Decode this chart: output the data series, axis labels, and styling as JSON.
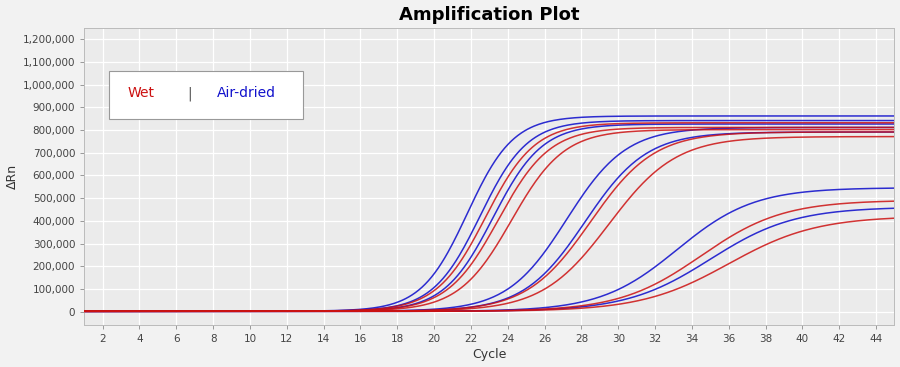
{
  "title": "Amplification Plot",
  "xlabel": "Cycle",
  "ylabel": "ΔRn",
  "xlim": [
    1,
    45
  ],
  "ylim": [
    -60000,
    1250000
  ],
  "xticks": [
    2,
    4,
    6,
    8,
    10,
    12,
    14,
    16,
    18,
    20,
    22,
    24,
    26,
    28,
    30,
    32,
    34,
    36,
    38,
    40,
    42,
    44
  ],
  "yticks": [
    0,
    100000,
    200000,
    300000,
    400000,
    500000,
    600000,
    700000,
    800000,
    900000,
    1000000,
    1100000,
    1200000
  ],
  "ytick_labels": [
    "0",
    "100,000",
    "200,000",
    "300,000",
    "400,000",
    "500,000",
    "600,000",
    "700,000",
    "800,000",
    "900,000",
    "1,000,000",
    "1,100,000",
    "1,200,000"
  ],
  "fig_bg": "#f2f2f2",
  "plot_bg": "#ebebeb",
  "grid_color": "#ffffff",
  "title_fontsize": 13,
  "axis_label_fontsize": 9,
  "tick_fontsize": 7.5,
  "wet_color": "#cc1111",
  "air_color": "#1111cc",
  "wet_curves": [
    {
      "midpoint": 22.8,
      "L": 830000,
      "k": 0.75,
      "baseline": 2000,
      "noise": 3000
    },
    {
      "midpoint": 23.5,
      "L": 810000,
      "k": 0.72,
      "baseline": 1500,
      "noise": 2500
    },
    {
      "midpoint": 24.2,
      "L": 800000,
      "k": 0.7,
      "baseline": 1800,
      "noise": 2800
    },
    {
      "midpoint": 28.5,
      "L": 790000,
      "k": 0.58,
      "baseline": 1500,
      "noise": 2000
    },
    {
      "midpoint": 29.5,
      "L": 770000,
      "k": 0.55,
      "baseline": 1200,
      "noise": 1800
    },
    {
      "midpoint": 34.5,
      "L": 490000,
      "k": 0.45,
      "baseline": 1000,
      "noise": 1500
    },
    {
      "midpoint": 36.0,
      "L": 420000,
      "k": 0.42,
      "baseline": 1000,
      "noise": 1500
    }
  ],
  "air_curves": [
    {
      "midpoint": 21.8,
      "L": 860000,
      "k": 0.8,
      "baseline": 2000,
      "noise": 3200
    },
    {
      "midpoint": 22.5,
      "L": 840000,
      "k": 0.78,
      "baseline": 1800,
      "noise": 2800
    },
    {
      "midpoint": 23.2,
      "L": 825000,
      "k": 0.75,
      "baseline": 1500,
      "noise": 2500
    },
    {
      "midpoint": 27.2,
      "L": 810000,
      "k": 0.62,
      "baseline": 1500,
      "noise": 2200
    },
    {
      "midpoint": 28.2,
      "L": 790000,
      "k": 0.6,
      "baseline": 1200,
      "noise": 2000
    },
    {
      "midpoint": 33.2,
      "L": 545000,
      "k": 0.48,
      "baseline": 1000,
      "noise": 1600
    },
    {
      "midpoint": 35.0,
      "L": 460000,
      "k": 0.44,
      "baseline": 1000,
      "noise": 1500
    }
  ],
  "legend_wet": "Wet",
  "legend_air": "Air-dried",
  "legend_sep": "|"
}
